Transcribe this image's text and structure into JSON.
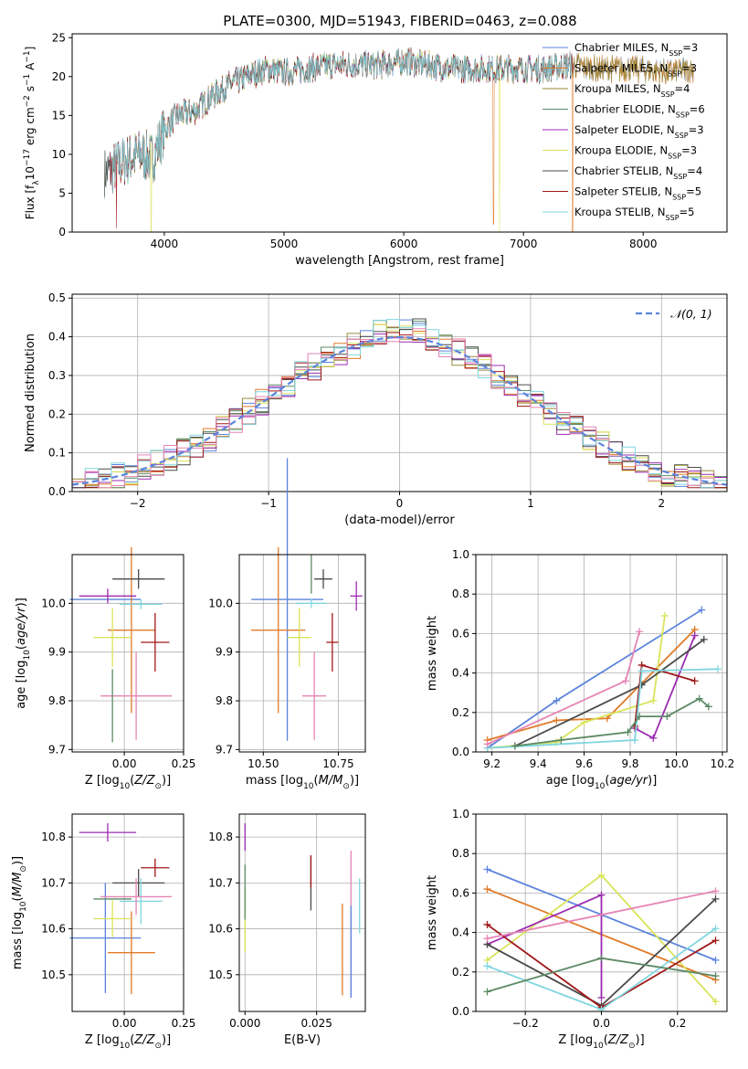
{
  "figure_title": "PLATE=0300, MJD=51943, FIBERID=0463, z=0.088",
  "colors": {
    "chabrier_miles": "#5b84dc",
    "salpeter_miles": "#e07a28",
    "kroupa_miles": "#9a8a3a",
    "chabrier_elodie": "#5d8a66",
    "salpeter_elodie": "#9b2bb0",
    "kroupa_elodie": "#d9e35a",
    "chabrier_stelib": "#4a4a4a",
    "salpeter_stelib": "#a01818",
    "kroupa_stelib": "#7fd6e0",
    "pink": "#e685b5",
    "gaussian": "#5b84dc"
  },
  "chart_data": [
    {
      "id": "spectrum",
      "type": "line",
      "title": "PLATE=0300, MJD=51943, FIBERID=0463, z=0.088",
      "xlabel": "wavelength [Angstrom, rest frame]",
      "ylabel": "Flux [f_λ10^-17 erg cm^-2 s^-1 A^-1]",
      "xlim": [
        3230,
        8700
      ],
      "ylim": [
        0,
        25.5
      ],
      "xticks": [
        4000,
        5000,
        6000,
        7000,
        8000
      ],
      "yticks": [
        0,
        5,
        10,
        15,
        20,
        25
      ],
      "legend_position": "top-right",
      "legend": [
        {
          "label": "Chabrier MILES, N_SSP=3",
          "color": "#5b84dc"
        },
        {
          "label": "Salpeter MILES, N_SSP=3",
          "color": "#e07a28"
        },
        {
          "label": "Kroupa MILES, N_SSP=4",
          "color": "#9a8a3a"
        },
        {
          "label": "Chabrier ELODIE, N_SSP=6",
          "color": "#5d8a66"
        },
        {
          "label": "Salpeter ELODIE, N_SSP=3",
          "color": "#9b2bb0"
        },
        {
          "label": "Kroupa ELODIE, N_SSP=3",
          "color": "#d9e35a"
        },
        {
          "label": "Chabrier STELIB, N_SSP=4",
          "color": "#4a4a4a"
        },
        {
          "label": "Salpeter STELIB, N_SSP=5",
          "color": "#a01818"
        },
        {
          "label": "Kroupa STELIB, N_SSP=5",
          "color": "#7fd6e0"
        }
      ],
      "data_points": [
        [
          3500,
          7.5
        ],
        [
          3650,
          9
        ],
        [
          3800,
          10
        ],
        [
          3900,
          9.5
        ],
        [
          4000,
          13
        ],
        [
          4100,
          15
        ],
        [
          4250,
          15.5
        ],
        [
          4400,
          17.5
        ],
        [
          4550,
          19
        ],
        [
          4700,
          20
        ],
        [
          4850,
          21
        ],
        [
          5000,
          20.5
        ],
        [
          5200,
          21
        ],
        [
          5400,
          21.5
        ],
        [
          5600,
          21.5
        ],
        [
          5800,
          21.5
        ],
        [
          6000,
          22
        ],
        [
          6200,
          21.5
        ],
        [
          6400,
          21
        ],
        [
          6600,
          21
        ],
        [
          6800,
          21
        ],
        [
          7000,
          21
        ],
        [
          7200,
          21
        ],
        [
          7400,
          21.5
        ],
        [
          7600,
          21
        ],
        [
          7800,
          21
        ],
        [
          8000,
          21
        ],
        [
          8200,
          20.5
        ],
        [
          8400,
          21
        ]
      ],
      "grid": false
    },
    {
      "id": "residuals",
      "type": "bar",
      "xlabel": "(data-model)/error",
      "ylabel": "Normed distribution",
      "xlim": [
        -2.5,
        2.5
      ],
      "ylim": [
        0,
        0.51
      ],
      "xticks": [
        -2,
        -1,
        0,
        1,
        2
      ],
      "yticks": [
        0.0,
        0.1,
        0.2,
        0.3,
        0.4,
        0.5
      ],
      "legend": [
        {
          "label": "N(0,1)",
          "color": "#5b84dc",
          "style": "dashed"
        }
      ],
      "legend_position": "top-right",
      "bin_width": 0.1,
      "gaussian": {
        "mean": 0,
        "sigma": 1
      },
      "grid": true
    },
    {
      "id": "age_vs_Z",
      "type": "scatter",
      "xlabel": "Z [log10(Z/Z_sun)]",
      "ylabel": "age [log10(age/yr)]",
      "xlim": [
        -0.22,
        0.25
      ],
      "ylim": [
        9.695,
        10.1
      ],
      "xticks": [
        0.0,
        0.25
      ],
      "yticks": [
        9.7,
        9.8,
        9.9,
        10.0
      ],
      "grid": true,
      "points": [
        {
          "color": "#5b84dc",
          "x": -0.08,
          "y": 10.008,
          "xerr": 0.15,
          "yerr": 0.0
        },
        {
          "color": "#e07a28",
          "x": 0.03,
          "y": 9.945,
          "xerr": 0.1,
          "yerr": 0.17
        },
        {
          "color": "#d9e35a",
          "x": -0.05,
          "y": 9.93,
          "xerr": 0.08,
          "yerr": 0.06
        },
        {
          "color": "#9b2bb0",
          "x": -0.07,
          "y": 10.015,
          "xerr": 0.12,
          "yerr": 0.015
        },
        {
          "color": "#4a4a4a",
          "x": 0.06,
          "y": 10.05,
          "xerr": 0.11,
          "yerr": 0.02
        },
        {
          "color": "#a01818",
          "x": 0.13,
          "y": 9.92,
          "xerr": 0.06,
          "yerr": 0.06
        },
        {
          "color": "#7fd6e0",
          "x": 0.07,
          "y": 9.998,
          "xerr": 0.09,
          "yerr": 0.01
        },
        {
          "color": "#e685b5",
          "x": 0.05,
          "y": 9.81,
          "xerr": 0.15,
          "yerr": 0.09
        },
        {
          "color": "#5d8a66",
          "x": -0.05,
          "y": 9.79,
          "xerr": 0.0,
          "yerr": 0.075
        }
      ]
    },
    {
      "id": "age_vs_mass",
      "type": "scatter",
      "xlabel": "mass [log10(M/M_sun)]",
      "xlim": [
        10.42,
        10.84
      ],
      "ylim": [
        9.695,
        10.1
      ],
      "xticks": [
        10.5,
        10.75
      ],
      "yticks": [
        9.7,
        9.8,
        9.9,
        10.0
      ],
      "grid": true,
      "points": [
        {
          "color": "#5b84dc",
          "x": 10.58,
          "y": 10.008,
          "xerr": 0.12,
          "yerr": 0.29
        },
        {
          "color": "#e07a28",
          "x": 10.55,
          "y": 9.945,
          "xerr": 0.09,
          "yerr": 0.17
        },
        {
          "color": "#d9e35a",
          "x": 10.62,
          "y": 9.93,
          "xerr": 0.04,
          "yerr": 0.06
        },
        {
          "color": "#9b2bb0",
          "x": 10.81,
          "y": 10.015,
          "xerr": 0.02,
          "yerr": 0.03
        },
        {
          "color": "#4a4a4a",
          "x": 10.7,
          "y": 10.05,
          "xerr": 0.03,
          "yerr": 0.02
        },
        {
          "color": "#a01818",
          "x": 10.73,
          "y": 9.92,
          "xerr": 0.02,
          "yerr": 0.06
        },
        {
          "color": "#7fd6e0",
          "x": 10.66,
          "y": 10.0,
          "xerr": 0.05,
          "yerr": 0.01
        },
        {
          "color": "#e685b5",
          "x": 10.67,
          "y": 9.81,
          "xerr": 0.04,
          "yerr": 0.09
        },
        {
          "color": "#5d8a66",
          "x": 10.66,
          "y": 10.06,
          "xerr": 0.0,
          "yerr": 0.04
        }
      ]
    },
    {
      "id": "mass_weight_vs_age",
      "type": "line",
      "xlabel": "age [log10(age/yr)]",
      "ylabel": "mass weight",
      "xlim": [
        9.13,
        10.22
      ],
      "ylim": [
        0.0,
        1.0
      ],
      "xticks": [
        9.2,
        9.4,
        9.6,
        9.8,
        10.0,
        10.2
      ],
      "yticks": [
        0.0,
        0.2,
        0.4,
        0.6,
        0.8,
        1.0
      ],
      "grid": true,
      "series": [
        {
          "color": "#5b84dc",
          "x": [
            9.18,
            9.48,
            10.11
          ],
          "y": [
            0.02,
            0.26,
            0.72
          ]
        },
        {
          "color": "#e07a28",
          "x": [
            9.18,
            9.48,
            9.7,
            10.08
          ],
          "y": [
            0.06,
            0.16,
            0.17,
            0.62
          ]
        },
        {
          "color": "#d9e35a",
          "x": [
            9.18,
            9.48,
            9.6,
            9.9,
            9.95
          ],
          "y": [
            0.02,
            0.05,
            0.15,
            0.26,
            0.69
          ]
        },
        {
          "color": "#9b2bb0",
          "x": [
            9.82,
            9.9,
            10.08
          ],
          "y": [
            0.12,
            0.07,
            0.59
          ]
        },
        {
          "color": "#4a4a4a",
          "x": [
            9.3,
            9.85,
            10.12
          ],
          "y": [
            0.03,
            0.34,
            0.57
          ]
        },
        {
          "color": "#a01818",
          "x": [
            9.82,
            9.85,
            10.08
          ],
          "y": [
            0.13,
            0.44,
            0.36
          ]
        },
        {
          "color": "#7fd6e0",
          "x": [
            9.18,
            9.82,
            9.85,
            10.18
          ],
          "y": [
            0.02,
            0.06,
            0.41,
            0.42
          ]
        },
        {
          "color": "#e685b5",
          "x": [
            9.18,
            9.78,
            9.84
          ],
          "y": [
            0.04,
            0.36,
            0.61
          ]
        },
        {
          "color": "#5d8a66",
          "x": [
            9.3,
            9.5,
            9.79,
            9.84,
            9.96,
            10.1,
            10.14
          ],
          "y": [
            0.03,
            0.06,
            0.1,
            0.18,
            0.18,
            0.27,
            0.23
          ]
        }
      ]
    },
    {
      "id": "mass_vs_Z",
      "type": "scatter",
      "xlabel": "Z [log10(Z/Z_sun)]",
      "ylabel": "mass [log10(M/M_sun)]",
      "xlim": [
        -0.22,
        0.25
      ],
      "ylim": [
        10.42,
        10.85
      ],
      "xticks": [
        0.0,
        0.25
      ],
      "yticks": [
        10.5,
        10.6,
        10.7,
        10.8
      ],
      "grid": true,
      "points": [
        {
          "color": "#5b84dc",
          "x": -0.08,
          "y": 10.58,
          "xerr": 0.15,
          "yerr": 0.12
        },
        {
          "color": "#e07a28",
          "x": 0.03,
          "y": 10.548,
          "xerr": 0.1,
          "yerr": 0.09
        },
        {
          "color": "#d9e35a",
          "x": -0.05,
          "y": 10.622,
          "xerr": 0.08,
          "yerr": 0.04
        },
        {
          "color": "#9b2bb0",
          "x": -0.07,
          "y": 10.81,
          "xerr": 0.12,
          "yerr": 0.02
        },
        {
          "color": "#4a4a4a",
          "x": 0.06,
          "y": 10.7,
          "xerr": 0.11,
          "yerr": 0.03
        },
        {
          "color": "#a01818",
          "x": 0.13,
          "y": 10.733,
          "xerr": 0.06,
          "yerr": 0.02
        },
        {
          "color": "#7fd6e0",
          "x": 0.07,
          "y": 10.66,
          "xerr": 0.09,
          "yerr": 0.05
        },
        {
          "color": "#e685b5",
          "x": 0.05,
          "y": 10.67,
          "xerr": 0.15,
          "yerr": 0.04
        },
        {
          "color": "#5d8a66",
          "x": -0.05,
          "y": 10.665,
          "xerr": 0.08,
          "yerr": 0.0
        }
      ]
    },
    {
      "id": "mass_vs_ebv",
      "type": "scatter",
      "xlabel": "E(B-V)",
      "xlim": [
        -0.002,
        0.042
      ],
      "ylim": [
        10.42,
        10.85
      ],
      "xticks": [
        0.0,
        0.025
      ],
      "yticks": [
        10.5,
        10.6,
        10.7,
        10.8
      ],
      "grid": true,
      "points": [
        {
          "color": "#9b2bb0",
          "x": 0.0,
          "y": 10.8,
          "yerr": 0.03
        },
        {
          "color": "#d9e35a",
          "x": 0.0,
          "y": 10.62,
          "yerr": 0.07
        },
        {
          "color": "#5d8a66",
          "x": 0.0,
          "y": 10.68,
          "yerr": 0.06
        },
        {
          "color": "#4a4a4a",
          "x": 0.023,
          "y": 10.7,
          "yerr": 0.06
        },
        {
          "color": "#a01818",
          "x": 0.023,
          "y": 10.725,
          "yerr": 0.035
        },
        {
          "color": "#e07a28",
          "x": 0.034,
          "y": 10.555,
          "yerr": 0.1
        },
        {
          "color": "#e685b5",
          "x": 0.037,
          "y": 10.61,
          "yerr": 0.16
        },
        {
          "color": "#5b84dc",
          "x": 0.037,
          "y": 10.55,
          "yerr": 0.1
        },
        {
          "color": "#7fd6e0",
          "x": 0.04,
          "y": 10.65,
          "yerr": 0.06
        }
      ]
    },
    {
      "id": "mass_weight_vs_Z",
      "type": "line",
      "xlabel": "Z [log10(Z/Z_sun)]",
      "ylabel": "mass weight",
      "xlim": [
        -0.33,
        0.33
      ],
      "ylim": [
        0.0,
        1.0
      ],
      "xticks": [
        -0.2,
        0.0,
        0.2
      ],
      "yticks": [
        0.0,
        0.2,
        0.4,
        0.6,
        0.8,
        1.0
      ],
      "grid": true,
      "series": [
        {
          "color": "#5b84dc",
          "x": [
            -0.3,
            0.3
          ],
          "y": [
            0.72,
            0.26
          ]
        },
        {
          "color": "#e07a28",
          "x": [
            -0.3,
            0.3
          ],
          "y": [
            0.62,
            0.16
          ]
        },
        {
          "color": "#d9e35a",
          "x": [
            -0.3,
            0.0,
            0.3
          ],
          "y": [
            0.26,
            0.69,
            0.05
          ]
        },
        {
          "color": "#9b2bb0",
          "x": [
            -0.3,
            0.0,
            0.0
          ],
          "y": [
            0.34,
            0.59,
            0.07
          ]
        },
        {
          "color": "#4a4a4a",
          "x": [
            -0.3,
            0.0,
            0.3
          ],
          "y": [
            0.34,
            0.03,
            0.57
          ]
        },
        {
          "color": "#a01818",
          "x": [
            -0.3,
            0.0,
            0.3
          ],
          "y": [
            0.44,
            0.02,
            0.36
          ]
        },
        {
          "color": "#7fd6e0",
          "x": [
            -0.3,
            0.0,
            0.3
          ],
          "y": [
            0.23,
            0.01,
            0.42
          ]
        },
        {
          "color": "#e685b5",
          "x": [
            -0.3,
            0.3
          ],
          "y": [
            0.37,
            0.61
          ]
        },
        {
          "color": "#5d8a66",
          "x": [
            -0.3,
            0.0,
            0.3
          ],
          "y": [
            0.1,
            0.27,
            0.18
          ]
        }
      ]
    }
  ]
}
